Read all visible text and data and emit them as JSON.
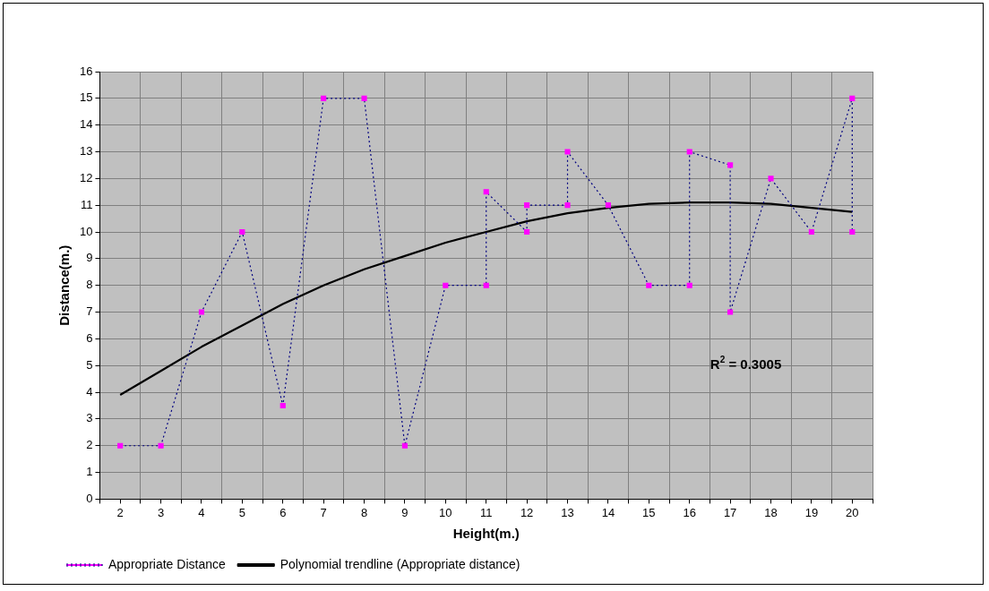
{
  "chart_data": {
    "type": "line",
    "xlabel": "Height(m.)",
    "ylabel": "Distance(m.)",
    "xlim": [
      1.5,
      20.5
    ],
    "xticks": [
      {
        "value": 1.5,
        "label": null
      },
      2,
      {
        "value": 2.5,
        "label": null
      },
      3,
      {
        "value": 3.5,
        "label": null
      },
      4,
      {
        "value": 4.5,
        "label": null
      },
      5,
      {
        "value": 5.5,
        "label": null
      },
      6,
      {
        "value": 6.5,
        "label": null
      },
      7,
      {
        "value": 7.5,
        "label": null
      },
      8,
      {
        "value": 8.5,
        "label": null
      },
      9,
      {
        "value": 9.5,
        "label": null
      },
      10,
      {
        "value": 10.5,
        "label": null
      },
      11,
      {
        "value": 11.5,
        "label": null
      },
      12,
      {
        "value": 12.5,
        "label": null
      },
      13,
      {
        "value": 13.5,
        "label": null
      },
      14,
      {
        "value": 14.5,
        "label": null
      },
      15,
      {
        "value": 15.5,
        "label": null
      },
      16,
      {
        "value": 16.5,
        "label": null
      },
      17,
      {
        "value": 17.5,
        "label": null
      },
      18,
      {
        "value": 18.5,
        "label": null
      },
      19,
      {
        "value": 19.5,
        "label": null
      },
      20,
      {
        "value": 20.5,
        "label": null
      }
    ],
    "ylim": [
      0,
      16
    ],
    "yticks": [
      0,
      1,
      2,
      3,
      4,
      5,
      6,
      7,
      8,
      9,
      10,
      11,
      12,
      13,
      14,
      15,
      16
    ],
    "grid": true,
    "legend": "bottom left",
    "annotations": [
      "R$^{2}$ = 0.3005"
    ],
    "series": [
      {
        "name": "Appropriate Distance",
        "color": "#ff00ff",
        "marker": "square",
        "line_style": "dotted",
        "x": [
          2,
          3,
          4,
          5,
          6,
          7,
          8,
          9,
          10,
          11,
          11,
          12,
          12,
          13,
          13,
          14,
          15,
          16,
          16,
          17,
          17,
          18,
          19,
          20,
          20
        ],
        "values": [
          2,
          2,
          7,
          10,
          3.5,
          15,
          15,
          2,
          8,
          8,
          11.5,
          10,
          11,
          11,
          13,
          11,
          8,
          8,
          13,
          12.5,
          7,
          12,
          10,
          15,
          10
        ]
      },
      {
        "name": "Polynomial trendline (Appropriate distance)",
        "color": "#000000",
        "marker": "none",
        "line_style": "solid",
        "x": [
          2,
          3,
          4,
          5,
          6,
          7,
          8,
          9,
          10,
          11,
          12,
          13,
          14,
          15,
          16,
          17,
          18,
          19,
          20
        ],
        "values": [
          3.9,
          4.8,
          5.7,
          6.5,
          7.3,
          8.0,
          8.6,
          9.1,
          9.6,
          10.0,
          10.4,
          10.7,
          10.9,
          11.05,
          11.1,
          11.1,
          11.05,
          10.9,
          10.75
        ]
      }
    ]
  }
}
